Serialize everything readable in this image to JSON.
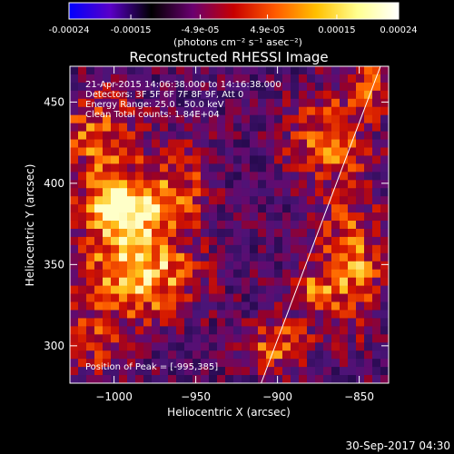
{
  "colorbar": {
    "tick_labels": [
      "-0.00024",
      "-0.00015",
      "-4.9e-05",
      "4.9e-05",
      "0.00015",
      "0.00024"
    ],
    "tick_values": [
      -0.00024,
      -0.00015,
      -4.9e-05,
      4.9e-05,
      0.00015,
      0.00024
    ],
    "range": [
      -0.00024,
      0.00024
    ],
    "unit_label": "(photons cm⁻² s⁻¹ asec⁻²)",
    "colormap_stops": [
      "#0000ff",
      "#5a00c8",
      "#000000",
      "#6a0070",
      "#c80000",
      "#ff5a00",
      "#ffc000",
      "#ffff90",
      "#ffffff"
    ]
  },
  "chart_data": {
    "type": "heatmap",
    "title": "Reconstructed RHESSI Image",
    "xlabel": "Heliocentric X (arcsec)",
    "ylabel": "Heliocentric Y (arcsec)",
    "xlim": [
      -1027,
      -832
    ],
    "ylim": [
      277,
      472
    ],
    "x_ticks": [
      -1000,
      -950,
      -900,
      -850
    ],
    "x_tick_labels": [
      "−1000",
      "−950",
      "−900",
      "−850"
    ],
    "y_ticks": [
      300,
      350,
      400,
      450
    ],
    "y_tick_labels": [
      "300",
      "350",
      "400",
      "450"
    ],
    "limb_line": {
      "points": [
        [
          -910,
          277
        ],
        [
          -837,
          472
        ]
      ]
    },
    "annotations": [
      "21-Apr-2015 14:06:38.000 to 14:16:38.000",
      "Detectors: 3F 5F 6F 7F 8F 9F, Att 0",
      "Energy Range: 25.0 - 50.0 keV",
      "Clean     Total counts: 1.84E+04"
    ],
    "peak_label": "Position of Peak = [-995,385]",
    "peak": [
      -995,
      385
    ],
    "sources": [
      {
        "x": -995,
        "y": 385,
        "sx": 16,
        "sy": 14,
        "amp": 1.0
      },
      {
        "x": -985,
        "y": 345,
        "sx": 24,
        "sy": 20,
        "amp": 0.85
      },
      {
        "x": -1010,
        "y": 430,
        "sx": 18,
        "sy": 20,
        "amp": 0.55
      },
      {
        "x": -960,
        "y": 400,
        "sx": 14,
        "sy": 18,
        "amp": 0.45
      },
      {
        "x": -855,
        "y": 350,
        "sx": 14,
        "sy": 28,
        "amp": 0.65
      },
      {
        "x": -870,
        "y": 425,
        "sx": 18,
        "sy": 20,
        "amp": 0.55
      },
      {
        "x": -845,
        "y": 460,
        "sx": 12,
        "sy": 12,
        "amp": 0.45
      },
      {
        "x": -900,
        "y": 300,
        "sx": 14,
        "sy": 12,
        "amp": 0.55
      },
      {
        "x": -880,
        "y": 335,
        "sx": 10,
        "sy": 10,
        "amp": 0.4
      },
      {
        "x": -1015,
        "y": 300,
        "sx": 14,
        "sy": 14,
        "amp": 0.4
      }
    ]
  },
  "footer": {
    "timestamp": "30-Sep-2017 04:30"
  }
}
